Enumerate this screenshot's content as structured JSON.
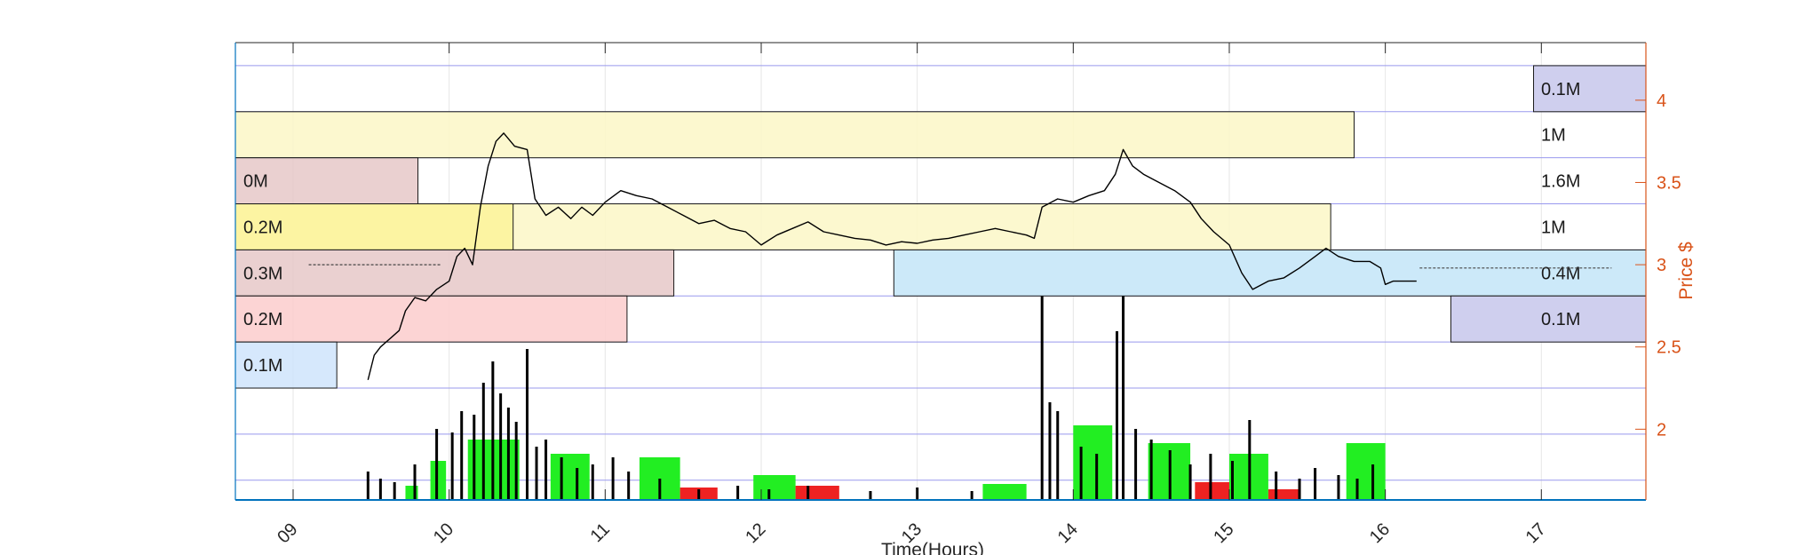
{
  "chart_data": {
    "type": "bar",
    "title": "",
    "xlabel": "Time(Hours)",
    "ylabel_right": "Price $",
    "x_ticks": [
      "09",
      "10",
      "11",
      "12",
      "13",
      "14",
      "15",
      "16",
      "17"
    ],
    "xlim": [
      8.63,
      17.67
    ],
    "y_right_ticks": [
      "2",
      "2.5",
      "3",
      "3.5",
      "4"
    ],
    "y_right_tick_values": [
      2,
      2.5,
      3,
      3.5,
      4
    ],
    "ylim_right": [
      1.57,
      4.35
    ],
    "grid": true,
    "colors": {
      "axis_right": "#d95319",
      "axis_left": "#0072bd",
      "band_edge": "#1a1a1a",
      "price_line": "#000000",
      "volume_up": "#22ee22",
      "volume_down": "#ee2222",
      "volume_spike": "#000000",
      "grid_blue": "#9999ee"
    },
    "volume_profile": [
      {
        "side": "left",
        "price_low": 3.65,
        "price_high": 3.93,
        "x_end": 15.8,
        "label": "",
        "color": "#fcf7c7"
      },
      {
        "side": "left",
        "price_low": 3.37,
        "price_high": 3.65,
        "x_end": 9.8,
        "label": "0M",
        "color": "#e6c8c8"
      },
      {
        "side": "left",
        "price_low": 3.09,
        "price_high": 3.37,
        "x_end": 15.65,
        "label": "",
        "color": "#fcf7c7"
      },
      {
        "side": "left",
        "price_low": 3.09,
        "price_high": 3.37,
        "x_end": 10.41,
        "label": "0.2M",
        "color": "#fbf39a"
      },
      {
        "side": "left",
        "price_low": 2.81,
        "price_high": 3.09,
        "x_end": 11.44,
        "label": "0.3M",
        "color": "#e6c8c8"
      },
      {
        "side": "left",
        "price_low": 2.53,
        "price_high": 2.81,
        "x_end": 11.14,
        "label": "0.2M",
        "color": "#fbcccc"
      },
      {
        "side": "left",
        "price_low": 2.25,
        "price_high": 2.53,
        "x_end": 9.28,
        "label": "0.1M",
        "color": "#cfe4fb"
      },
      {
        "side": "right",
        "price_low": 3.93,
        "price_high": 4.21,
        "x_start": 16.95,
        "label": "0.1M",
        "color": "#cfcfee"
      },
      {
        "side": "label",
        "price_low": 3.65,
        "price_high": 3.93,
        "label": "1M"
      },
      {
        "side": "label",
        "price_low": 3.37,
        "price_high": 3.65,
        "label": "1.6M"
      },
      {
        "side": "label",
        "price_low": 3.09,
        "price_high": 3.37,
        "label": "1M"
      },
      {
        "side": "range",
        "price_low": 2.81,
        "price_high": 3.09,
        "x_start": 12.85,
        "label": "0.4M",
        "color": "#cce9f9"
      },
      {
        "side": "right",
        "price_low": 2.53,
        "price_high": 2.81,
        "x_start": 16.42,
        "label": "0.1M",
        "color": "#cfcfee"
      }
    ],
    "price_series": {
      "name": "",
      "points": [
        [
          9.48,
          2.3
        ],
        [
          9.52,
          2.45
        ],
        [
          9.56,
          2.5
        ],
        [
          9.62,
          2.55
        ],
        [
          9.68,
          2.6
        ],
        [
          9.72,
          2.72
        ],
        [
          9.78,
          2.8
        ],
        [
          9.85,
          2.78
        ],
        [
          9.92,
          2.85
        ],
        [
          10.0,
          2.9
        ],
        [
          10.05,
          3.05
        ],
        [
          10.1,
          3.1
        ],
        [
          10.15,
          3.0
        ],
        [
          10.2,
          3.35
        ],
        [
          10.25,
          3.6
        ],
        [
          10.3,
          3.75
        ],
        [
          10.35,
          3.8
        ],
        [
          10.42,
          3.72
        ],
        [
          10.5,
          3.7
        ],
        [
          10.55,
          3.4
        ],
        [
          10.62,
          3.3
        ],
        [
          10.7,
          3.35
        ],
        [
          10.78,
          3.28
        ],
        [
          10.85,
          3.35
        ],
        [
          10.92,
          3.3
        ],
        [
          11.0,
          3.38
        ],
        [
          11.1,
          3.45
        ],
        [
          11.2,
          3.42
        ],
        [
          11.3,
          3.4
        ],
        [
          11.4,
          3.35
        ],
        [
          11.5,
          3.3
        ],
        [
          11.6,
          3.25
        ],
        [
          11.7,
          3.27
        ],
        [
          11.8,
          3.22
        ],
        [
          11.9,
          3.2
        ],
        [
          12.0,
          3.12
        ],
        [
          12.1,
          3.18
        ],
        [
          12.2,
          3.22
        ],
        [
          12.3,
          3.26
        ],
        [
          12.4,
          3.2
        ],
        [
          12.5,
          3.18
        ],
        [
          12.6,
          3.16
        ],
        [
          12.7,
          3.15
        ],
        [
          12.8,
          3.12
        ],
        [
          12.9,
          3.14
        ],
        [
          13.0,
          3.13
        ],
        [
          13.1,
          3.15
        ],
        [
          13.2,
          3.16
        ],
        [
          13.3,
          3.18
        ],
        [
          13.4,
          3.2
        ],
        [
          13.5,
          3.22
        ],
        [
          13.6,
          3.2
        ],
        [
          13.7,
          3.18
        ],
        [
          13.75,
          3.16
        ],
        [
          13.8,
          3.35
        ],
        [
          13.9,
          3.4
        ],
        [
          14.0,
          3.38
        ],
        [
          14.1,
          3.42
        ],
        [
          14.2,
          3.45
        ],
        [
          14.27,
          3.55
        ],
        [
          14.32,
          3.7
        ],
        [
          14.38,
          3.6
        ],
        [
          14.45,
          3.55
        ],
        [
          14.55,
          3.5
        ],
        [
          14.65,
          3.45
        ],
        [
          14.75,
          3.38
        ],
        [
          14.82,
          3.28
        ],
        [
          14.9,
          3.2
        ],
        [
          15.0,
          3.12
        ],
        [
          15.08,
          2.95
        ],
        [
          15.15,
          2.85
        ],
        [
          15.25,
          2.9
        ],
        [
          15.35,
          2.92
        ],
        [
          15.45,
          2.98
        ],
        [
          15.55,
          3.05
        ],
        [
          15.62,
          3.1
        ],
        [
          15.7,
          3.05
        ],
        [
          15.8,
          3.02
        ],
        [
          15.9,
          3.02
        ],
        [
          15.97,
          2.98
        ],
        [
          16.0,
          2.88
        ],
        [
          16.05,
          2.9
        ],
        [
          16.2,
          2.9
        ]
      ],
      "flat_segments": [
        [
          [
            9.1,
            3.0
          ],
          [
            9.95,
            3.0
          ]
        ],
        [
          [
            16.22,
            2.98
          ],
          [
            17.45,
            2.98
          ]
        ]
      ]
    },
    "volume_bars": {
      "up_blocks": [
        {
          "x0": 9.72,
          "x1": 9.8,
          "v": 0.08
        },
        {
          "x0": 9.88,
          "x1": 9.98,
          "v": 0.22
        },
        {
          "x0": 10.12,
          "x1": 10.45,
          "v": 0.34
        },
        {
          "x0": 10.65,
          "x1": 10.9,
          "v": 0.26
        },
        {
          "x0": 11.22,
          "x1": 11.48,
          "v": 0.24
        },
        {
          "x0": 11.95,
          "x1": 12.22,
          "v": 0.14
        },
        {
          "x0": 13.42,
          "x1": 13.7,
          "v": 0.09
        },
        {
          "x0": 14.0,
          "x1": 14.25,
          "v": 0.42
        },
        {
          "x0": 14.48,
          "x1": 14.75,
          "v": 0.32
        },
        {
          "x0": 15.0,
          "x1": 15.25,
          "v": 0.26
        },
        {
          "x0": 15.75,
          "x1": 16.0,
          "v": 0.32
        }
      ],
      "down_blocks": [
        {
          "x0": 11.48,
          "x1": 11.72,
          "v": 0.07
        },
        {
          "x0": 12.22,
          "x1": 12.5,
          "v": 0.08
        },
        {
          "x0": 14.78,
          "x1": 15.0,
          "v": 0.1
        },
        {
          "x0": 15.25,
          "x1": 15.45,
          "v": 0.06
        }
      ],
      "spikes": [
        {
          "x": 9.48,
          "v": 0.16
        },
        {
          "x": 9.56,
          "v": 0.12
        },
        {
          "x": 9.65,
          "v": 0.1
        },
        {
          "x": 9.78,
          "v": 0.2
        },
        {
          "x": 9.92,
          "v": 0.4
        },
        {
          "x": 10.02,
          "v": 0.38
        },
        {
          "x": 10.08,
          "v": 0.5
        },
        {
          "x": 10.16,
          "v": 0.48
        },
        {
          "x": 10.22,
          "v": 0.66
        },
        {
          "x": 10.28,
          "v": 0.78
        },
        {
          "x": 10.33,
          "v": 0.6
        },
        {
          "x": 10.38,
          "v": 0.52
        },
        {
          "x": 10.43,
          "v": 0.44
        },
        {
          "x": 10.5,
          "v": 0.85
        },
        {
          "x": 10.56,
          "v": 0.3
        },
        {
          "x": 10.62,
          "v": 0.34
        },
        {
          "x": 10.72,
          "v": 0.24
        },
        {
          "x": 10.82,
          "v": 0.18
        },
        {
          "x": 10.92,
          "v": 0.2
        },
        {
          "x": 11.05,
          "v": 0.24
        },
        {
          "x": 11.15,
          "v": 0.16
        },
        {
          "x": 11.35,
          "v": 0.12
        },
        {
          "x": 11.6,
          "v": 0.06
        },
        {
          "x": 11.85,
          "v": 0.08
        },
        {
          "x": 12.05,
          "v": 0.06
        },
        {
          "x": 12.3,
          "v": 0.08
        },
        {
          "x": 12.7,
          "v": 0.05
        },
        {
          "x": 13.0,
          "v": 0.07
        },
        {
          "x": 13.35,
          "v": 0.05
        },
        {
          "x": 13.8,
          "v": 1.35
        },
        {
          "x": 13.85,
          "v": 0.55
        },
        {
          "x": 13.9,
          "v": 0.5
        },
        {
          "x": 14.05,
          "v": 0.3
        },
        {
          "x": 14.15,
          "v": 0.26
        },
        {
          "x": 14.28,
          "v": 0.95
        },
        {
          "x": 14.32,
          "v": 1.35
        },
        {
          "x": 14.4,
          "v": 0.4
        },
        {
          "x": 14.5,
          "v": 0.34
        },
        {
          "x": 14.62,
          "v": 0.28
        },
        {
          "x": 14.75,
          "v": 0.2
        },
        {
          "x": 14.88,
          "v": 0.26
        },
        {
          "x": 15.02,
          "v": 0.22
        },
        {
          "x": 15.13,
          "v": 0.45
        },
        {
          "x": 15.3,
          "v": 0.16
        },
        {
          "x": 15.45,
          "v": 0.12
        },
        {
          "x": 15.55,
          "v": 0.18
        },
        {
          "x": 15.7,
          "v": 0.14
        },
        {
          "x": 15.82,
          "v": 0.12
        },
        {
          "x": 15.92,
          "v": 0.2
        }
      ]
    }
  }
}
